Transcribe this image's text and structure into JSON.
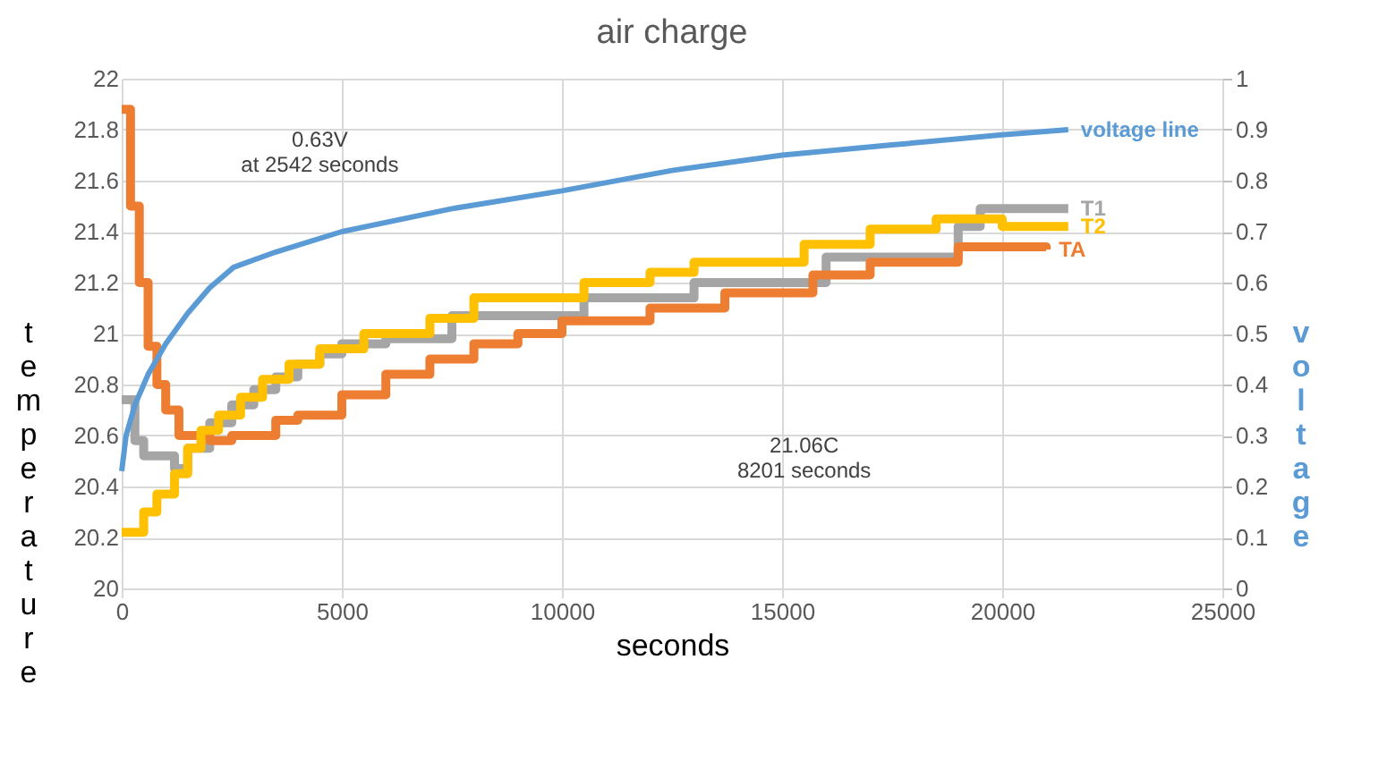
{
  "chart_data": {
    "type": "step",
    "title": "air charge",
    "xlabel": "seconds",
    "ylabel": "temperature",
    "y2label": "voltage",
    "xlim": [
      0,
      25000
    ],
    "xticks": [
      0,
      5000,
      10000,
      15000,
      20000,
      25000
    ],
    "ylim": [
      20,
      22
    ],
    "yticks": [
      20,
      20.2,
      20.4,
      20.6,
      20.8,
      21,
      21.2,
      21.4,
      21.6,
      21.8,
      22
    ],
    "y2lim": [
      0,
      1
    ],
    "y2ticks": [
      0,
      0.1,
      0.2,
      0.3,
      0.4,
      0.5,
      0.6,
      0.7,
      0.8,
      0.9,
      1
    ],
    "grid": true,
    "annotations": [
      "0.63V\nat 2542 seconds",
      "21.06C\n8201 seconds"
    ],
    "series": [
      {
        "name": "T1",
        "color": "#a5a5a5",
        "x": [
          0,
          300,
          500,
          1200,
          1500,
          2000,
          2500,
          3000,
          3500,
          4000,
          4500,
          5000,
          6000,
          7500,
          10500,
          13000,
          16000,
          19000,
          19500,
          21500
        ],
        "values": [
          20.74,
          20.58,
          20.52,
          20.47,
          20.55,
          20.65,
          20.72,
          20.78,
          20.83,
          20.88,
          20.92,
          20.96,
          20.98,
          21.07,
          21.14,
          21.2,
          21.3,
          21.42,
          21.49,
          21.49
        ]
      },
      {
        "name": "TA",
        "color": "#ed7d31",
        "x": [
          0,
          200,
          400,
          600,
          800,
          1000,
          1300,
          2000,
          2500,
          3500,
          4000,
          5000,
          6000,
          7000,
          8000,
          9000,
          10000,
          12000,
          13700,
          15700,
          17000,
          19000,
          21000
        ],
        "values": [
          21.88,
          21.5,
          21.2,
          20.95,
          20.8,
          20.7,
          20.6,
          20.58,
          20.6,
          20.66,
          20.68,
          20.76,
          20.84,
          20.9,
          20.96,
          21.0,
          21.05,
          21.1,
          21.16,
          21.23,
          21.28,
          21.34,
          21.33
        ]
      },
      {
        "name": "T2",
        "color": "#ffc000",
        "x": [
          0,
          500,
          800,
          1200,
          1500,
          1800,
          2200,
          2700,
          3200,
          3800,
          4500,
          5500,
          7000,
          8000,
          10500,
          12000,
          13000,
          15500,
          17000,
          18500,
          20000,
          21500
        ],
        "values": [
          20.22,
          20.3,
          20.37,
          20.45,
          20.55,
          20.62,
          20.68,
          20.75,
          20.82,
          20.88,
          20.94,
          21.0,
          21.06,
          21.14,
          21.2,
          21.24,
          21.28,
          21.35,
          21.41,
          21.45,
          21.42,
          21.42
        ]
      },
      {
        "name": "voltage line",
        "type": "line",
        "axis": "y2",
        "color": "#5b9bd5",
        "x": [
          0,
          100,
          300,
          600,
          1000,
          1500,
          2000,
          2542,
          3500,
          5000,
          7500,
          10000,
          12500,
          15000,
          17500,
          20000,
          21500
        ],
        "values": [
          0.23,
          0.3,
          0.36,
          0.42,
          0.48,
          0.54,
          0.59,
          0.63,
          0.66,
          0.7,
          0.745,
          0.78,
          0.82,
          0.85,
          0.87,
          0.89,
          0.9
        ]
      }
    ]
  }
}
